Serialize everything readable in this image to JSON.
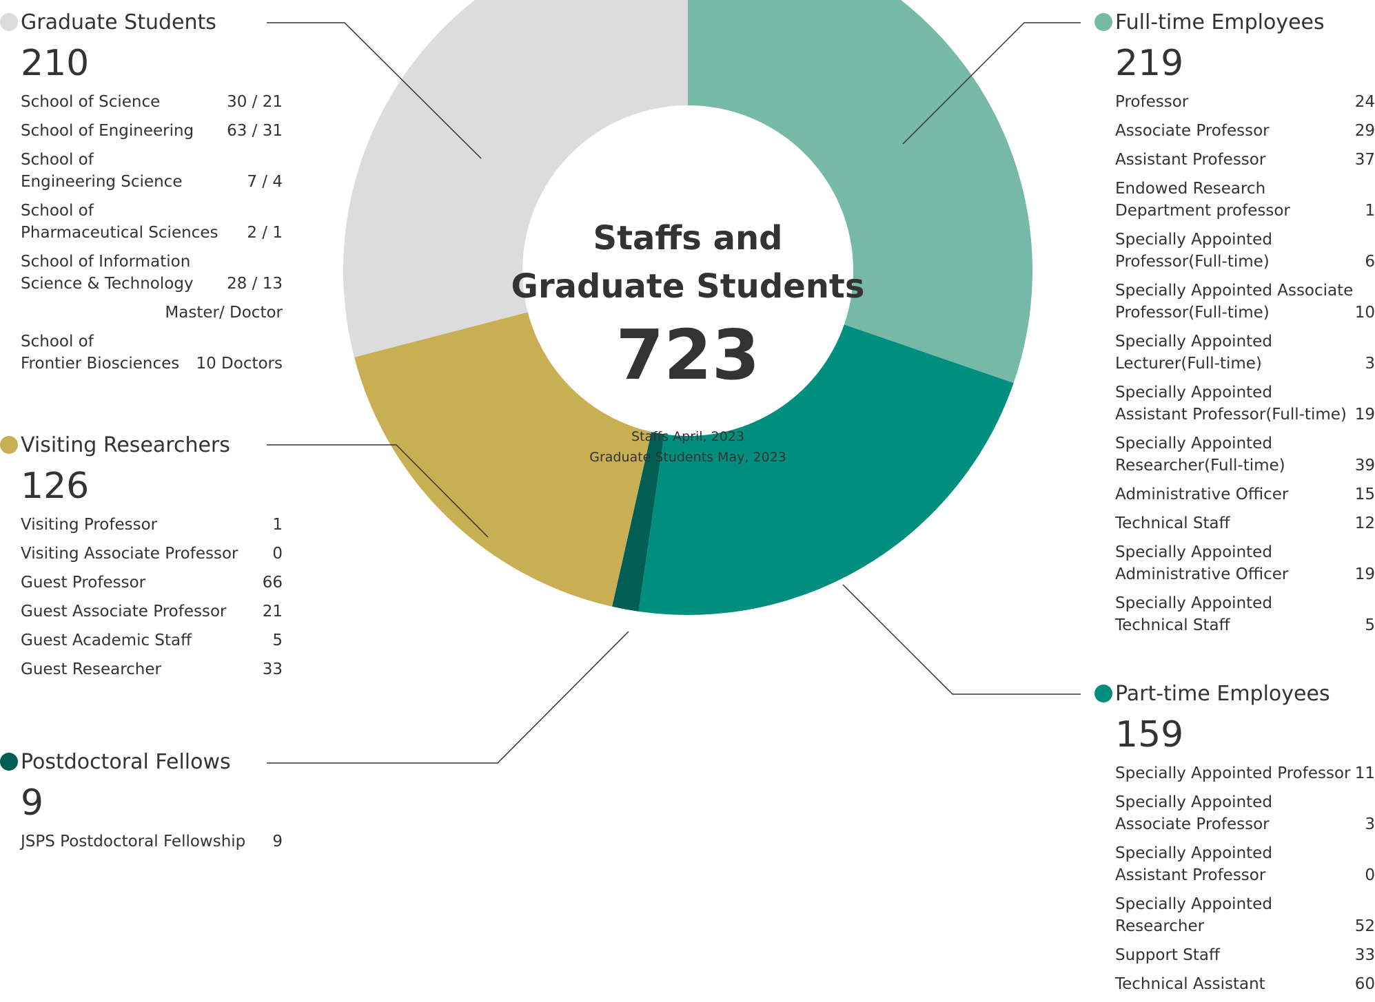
{
  "chart_data": {
    "type": "pie",
    "variant": "donut",
    "title": "Staffs and Graduate Students",
    "total": "723",
    "notes": [
      "Staffs April, 2023",
      "Graduate Students May, 2023"
    ],
    "slices": [
      {
        "label": "Full-time Employees",
        "value": 219,
        "color": "#75b9a6"
      },
      {
        "label": "Part-time Employees",
        "value": 159,
        "color": "#008e7f"
      },
      {
        "label": "Postdoctoral Fellows",
        "value": 9,
        "color": "#005e54"
      },
      {
        "label": "Visiting Researchers",
        "value": 126,
        "color": "#c8af53"
      },
      {
        "label": "Graduate Students",
        "value": 210,
        "color": "#dcdcdc"
      }
    ]
  },
  "groups": {
    "graduate": {
      "title": "Graduate Students",
      "total": "210",
      "color": "#dcdcdc",
      "items": [
        {
          "label": "School of Science",
          "value": "30 / 21"
        },
        {
          "label": "School of Engineering",
          "value": "63 / 31"
        },
        {
          "label": "School of\nEngineering Science",
          "value": "7 / 4"
        },
        {
          "label": "School of\nPharmaceutical Sciences",
          "value": "2 / 1"
        },
        {
          "label": "School of Information\nScience & Technology",
          "value": "28 / 13"
        }
      ],
      "note": "Master/ Doctor",
      "extra": {
        "label": "School of\nFrontier Biosciences",
        "value": "10 Doctors"
      }
    },
    "visiting": {
      "title": "Visiting Researchers",
      "total": "126",
      "color": "#c8af53",
      "items": [
        {
          "label": "Visiting Professor",
          "value": "1"
        },
        {
          "label": "Visiting Associate Professor",
          "value": "0"
        },
        {
          "label": "Guest Professor",
          "value": "66"
        },
        {
          "label": "Guest Associate Professor",
          "value": "21"
        },
        {
          "label": "Guest Academic Staff",
          "value": "5"
        },
        {
          "label": "Guest Researcher",
          "value": "33"
        }
      ]
    },
    "postdoc": {
      "title": "Postdoctoral Fellows",
      "total": "9",
      "color": "#005e54",
      "items": [
        {
          "label": "JSPS Postdoctoral Fellowship",
          "value": "9"
        }
      ]
    },
    "fulltime": {
      "title": "Full-time Employees",
      "total": "219",
      "color": "#75b9a6",
      "items": [
        {
          "label": "Professor",
          "value": "24"
        },
        {
          "label": "Associate Professor",
          "value": "29"
        },
        {
          "label": "Assistant Professor",
          "value": "37"
        },
        {
          "label": "Endowed Research\nDepartment professor",
          "value": "1"
        },
        {
          "label": "Specially Appointed\nProfessor(Full-time)",
          "value": "6"
        },
        {
          "label": "Specially Appointed Associate\nProfessor(Full-time)",
          "value": "10"
        },
        {
          "label": "Specially Appointed\nLecturer(Full-time)",
          "value": "3"
        },
        {
          "label": "Specially Appointed\nAssistant Professor(Full-time)",
          "value": "19"
        },
        {
          "label": "Specially Appointed\nResearcher(Full-time)",
          "value": "39"
        },
        {
          "label": "Administrative Officer",
          "value": "15"
        },
        {
          "label": "Technical Staff",
          "value": "12"
        },
        {
          "label": "Specially Appointed\nAdministrative Officer",
          "value": "19"
        },
        {
          "label": "Specially Appointed\nTechnical Staff",
          "value": "5"
        }
      ]
    },
    "parttime": {
      "title": "Part-time Employees",
      "total": "159",
      "color": "#008e7f",
      "items": [
        {
          "label": "Specially Appointed Professor",
          "value": "11"
        },
        {
          "label": "Specially Appointed\nAssociate Professor",
          "value": "3"
        },
        {
          "label": "Specially Appointed\nAssistant Professor",
          "value": "0"
        },
        {
          "label": "Specially Appointed\nResearcher",
          "value": "52"
        },
        {
          "label": "Support Staff",
          "value": "33"
        },
        {
          "label": "Technical Assistant",
          "value": "60"
        }
      ]
    }
  }
}
